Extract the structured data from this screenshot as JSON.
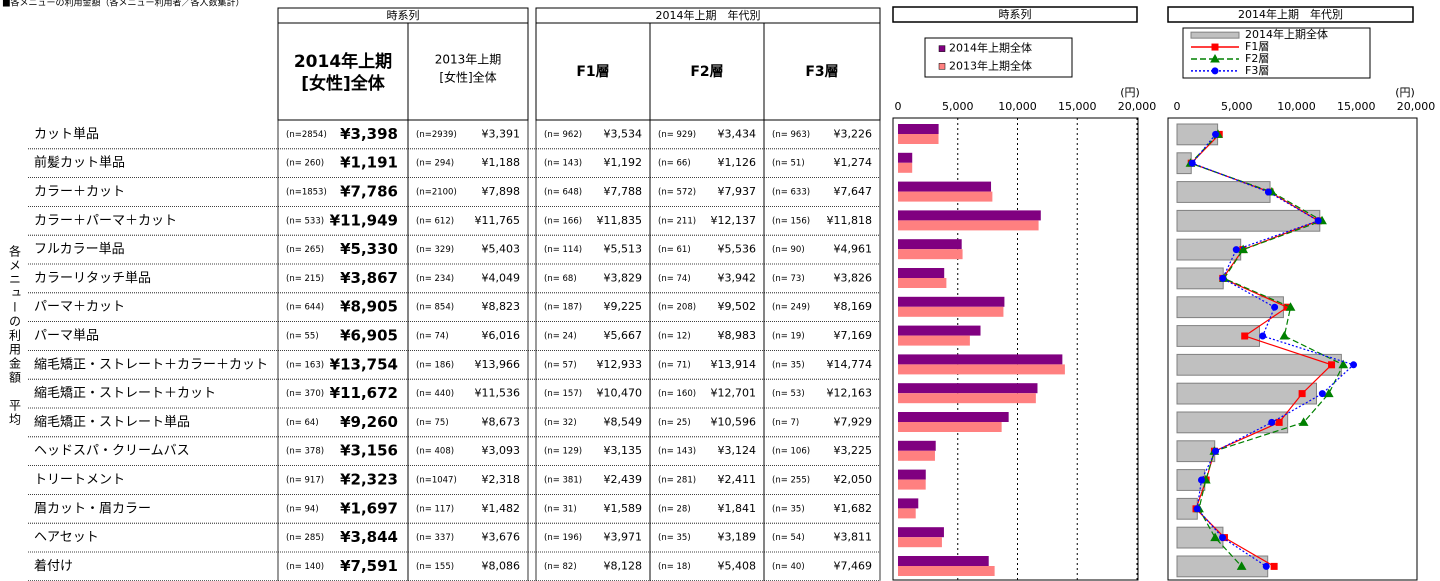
{
  "title": "■各メニューの利用金額（各メニュー利用者／各人数集計）",
  "side_label": "各メニューの利用金額　平均",
  "table": {
    "group_headers": [
      "時系列",
      "2014年上期　年代別"
    ],
    "columns": [
      {
        "line1": "2014年上期",
        "line2": "[女性]全体"
      },
      {
        "line1": "2013年上期",
        "line2": "[女性]全体"
      },
      {
        "line1": "F1層"
      },
      {
        "line1": "F2層"
      },
      {
        "line1": "F3層"
      }
    ],
    "rows": [
      {
        "menu": "カット単品",
        "cells": [
          {
            "n": "(n=2854)",
            "value": 3398,
            "label": "¥3,398"
          },
          {
            "n": "(n=2939)",
            "value": 3391,
            "label": "¥3,391"
          },
          {
            "n": "(n= 962)",
            "value": 3534,
            "label": "¥3,534"
          },
          {
            "n": "(n= 929)",
            "value": 3434,
            "label": "¥3,434"
          },
          {
            "n": "(n= 963)",
            "value": 3226,
            "label": "¥3,226"
          }
        ]
      },
      {
        "menu": "前髪カット単品",
        "cells": [
          {
            "n": "(n= 260)",
            "value": 1191,
            "label": "¥1,191"
          },
          {
            "n": "(n= 294)",
            "value": 1188,
            "label": "¥1,188"
          },
          {
            "n": "(n= 143)",
            "value": 1192,
            "label": "¥1,192"
          },
          {
            "n": "(n= 66)",
            "value": 1126,
            "label": "¥1,126"
          },
          {
            "n": "(n= 51)",
            "value": 1274,
            "label": "¥1,274"
          }
        ]
      },
      {
        "menu": "カラー＋カット",
        "cells": [
          {
            "n": "(n=1853)",
            "value": 7786,
            "label": "¥7,786"
          },
          {
            "n": "(n=2100)",
            "value": 7898,
            "label": "¥7,898"
          },
          {
            "n": "(n= 648)",
            "value": 7788,
            "label": "¥7,788"
          },
          {
            "n": "(n= 572)",
            "value": 7937,
            "label": "¥7,937"
          },
          {
            "n": "(n= 633)",
            "value": 7647,
            "label": "¥7,647"
          }
        ]
      },
      {
        "menu": "カラー＋パーマ＋カット",
        "cells": [
          {
            "n": "(n= 533)",
            "value": 11949,
            "label": "¥11,949"
          },
          {
            "n": "(n= 612)",
            "value": 11765,
            "label": "¥11,765"
          },
          {
            "n": "(n= 166)",
            "value": 11835,
            "label": "¥11,835"
          },
          {
            "n": "(n= 211)",
            "value": 12137,
            "label": "¥12,137"
          },
          {
            "n": "(n= 156)",
            "value": 11818,
            "label": "¥11,818"
          }
        ]
      },
      {
        "menu": "フルカラー単品",
        "cells": [
          {
            "n": "(n= 265)",
            "value": 5330,
            "label": "¥5,330"
          },
          {
            "n": "(n= 329)",
            "value": 5403,
            "label": "¥5,403"
          },
          {
            "n": "(n= 114)",
            "value": 5513,
            "label": "¥5,513"
          },
          {
            "n": "(n= 61)",
            "value": 5536,
            "label": "¥5,536"
          },
          {
            "n": "(n= 90)",
            "value": 4961,
            "label": "¥4,961"
          }
        ]
      },
      {
        "menu": "カラーリタッチ単品",
        "cells": [
          {
            "n": "(n= 215)",
            "value": 3867,
            "label": "¥3,867"
          },
          {
            "n": "(n= 234)",
            "value": 4049,
            "label": "¥4,049"
          },
          {
            "n": "(n= 68)",
            "value": 3829,
            "label": "¥3,829"
          },
          {
            "n": "(n= 74)",
            "value": 3942,
            "label": "¥3,942"
          },
          {
            "n": "(n= 73)",
            "value": 3826,
            "label": "¥3,826"
          }
        ]
      },
      {
        "menu": "パーマ＋カット",
        "cells": [
          {
            "n": "(n= 644)",
            "value": 8905,
            "label": "¥8,905"
          },
          {
            "n": "(n= 854)",
            "value": 8823,
            "label": "¥8,823"
          },
          {
            "n": "(n= 187)",
            "value": 9225,
            "label": "¥9,225"
          },
          {
            "n": "(n= 208)",
            "value": 9502,
            "label": "¥9,502"
          },
          {
            "n": "(n= 249)",
            "value": 8169,
            "label": "¥8,169"
          }
        ]
      },
      {
        "menu": "パーマ単品",
        "cells": [
          {
            "n": "(n= 55)",
            "value": 6905,
            "label": "¥6,905"
          },
          {
            "n": "(n= 74)",
            "value": 6016,
            "label": "¥6,016"
          },
          {
            "n": "(n= 24)",
            "value": 5667,
            "label": "¥5,667"
          },
          {
            "n": "(n= 12)",
            "value": 8983,
            "label": "¥8,983"
          },
          {
            "n": "(n= 19)",
            "value": 7169,
            "label": "¥7,169"
          }
        ]
      },
      {
        "menu": "縮毛矯正・ストレート＋カラー＋カット",
        "cells": [
          {
            "n": "(n= 163)",
            "value": 13754,
            "label": "¥13,754"
          },
          {
            "n": "(n= 186)",
            "value": 13966,
            "label": "¥13,966"
          },
          {
            "n": "(n= 57)",
            "value": 12933,
            "label": "¥12,933"
          },
          {
            "n": "(n= 71)",
            "value": 13914,
            "label": "¥13,914"
          },
          {
            "n": "(n= 35)",
            "value": 14774,
            "label": "¥14,774"
          }
        ]
      },
      {
        "menu": "縮毛矯正・ストレート＋カット",
        "cells": [
          {
            "n": "(n= 370)",
            "value": 11672,
            "label": "¥11,672"
          },
          {
            "n": "(n= 440)",
            "value": 11536,
            "label": "¥11,536"
          },
          {
            "n": "(n= 157)",
            "value": 10470,
            "label": "¥10,470"
          },
          {
            "n": "(n= 160)",
            "value": 12701,
            "label": "¥12,701"
          },
          {
            "n": "(n= 53)",
            "value": 12163,
            "label": "¥12,163"
          }
        ]
      },
      {
        "menu": "縮毛矯正・ストレート単品",
        "cells": [
          {
            "n": "(n= 64)",
            "value": 9260,
            "label": "¥9,260"
          },
          {
            "n": "(n= 75)",
            "value": 8673,
            "label": "¥8,673"
          },
          {
            "n": "(n= 32)",
            "value": 8549,
            "label": "¥8,549"
          },
          {
            "n": "(n= 25)",
            "value": 10596,
            "label": "¥10,596"
          },
          {
            "n": "(n= 7)",
            "value": 7929,
            "label": "¥7,929"
          }
        ]
      },
      {
        "menu": "ヘッドスパ・クリームバス",
        "cells": [
          {
            "n": "(n= 378)",
            "value": 3156,
            "label": "¥3,156"
          },
          {
            "n": "(n= 408)",
            "value": 3093,
            "label": "¥3,093"
          },
          {
            "n": "(n= 129)",
            "value": 3135,
            "label": "¥3,135"
          },
          {
            "n": "(n= 143)",
            "value": 3124,
            "label": "¥3,124"
          },
          {
            "n": "(n= 106)",
            "value": 3225,
            "label": "¥3,225"
          }
        ]
      },
      {
        "menu": "トリートメント",
        "cells": [
          {
            "n": "(n= 917)",
            "value": 2323,
            "label": "¥2,323"
          },
          {
            "n": "(n=1047)",
            "value": 2318,
            "label": "¥2,318"
          },
          {
            "n": "(n= 381)",
            "value": 2439,
            "label": "¥2,439"
          },
          {
            "n": "(n= 281)",
            "value": 2411,
            "label": "¥2,411"
          },
          {
            "n": "(n= 255)",
            "value": 2050,
            "label": "¥2,050"
          }
        ]
      },
      {
        "menu": "眉カット・眉カラー",
        "cells": [
          {
            "n": "(n= 94)",
            "value": 1697,
            "label": "¥1,697"
          },
          {
            "n": "(n= 117)",
            "value": 1482,
            "label": "¥1,482"
          },
          {
            "n": "(n= 31)",
            "value": 1589,
            "label": "¥1,589"
          },
          {
            "n": "(n= 28)",
            "value": 1841,
            "label": "¥1,841"
          },
          {
            "n": "(n= 35)",
            "value": 1682,
            "label": "¥1,682"
          }
        ]
      },
      {
        "menu": "ヘアセット",
        "cells": [
          {
            "n": "(n= 285)",
            "value": 3844,
            "label": "¥3,844"
          },
          {
            "n": "(n= 337)",
            "value": 3676,
            "label": "¥3,676"
          },
          {
            "n": "(n= 196)",
            "value": 3971,
            "label": "¥3,971"
          },
          {
            "n": "(n= 35)",
            "value": 3189,
            "label": "¥3,189"
          },
          {
            "n": "(n= 54)",
            "value": 3811,
            "label": "¥3,811"
          }
        ]
      },
      {
        "menu": "着付け",
        "cells": [
          {
            "n": "(n= 140)",
            "value": 7591,
            "label": "¥7,591"
          },
          {
            "n": "(n= 155)",
            "value": 8086,
            "label": "¥8,086"
          },
          {
            "n": "(n= 82)",
            "value": 8128,
            "label": "¥8,128"
          },
          {
            "n": "(n= 18)",
            "value": 5408,
            "label": "¥5,408"
          },
          {
            "n": "(n= 40)",
            "value": 7469,
            "label": "¥7,469"
          }
        ]
      }
    ]
  },
  "charts": [
    {
      "type": "bar",
      "title": "時系列",
      "unit": "(円)",
      "xlim": [
        0,
        20000
      ],
      "xticks": [
        0,
        {
          "value": 5000,
          "label": "5,000"
        },
        {
          "value": 10000,
          "label": "10,000"
        },
        {
          "value": 15000,
          "label": "15,000"
        },
        {
          "value": 20000,
          "label": "20,000"
        }
      ],
      "grid": true,
      "series": [
        {
          "name": "2014年上期全体",
          "color": "#800080",
          "type": "bar"
        },
        {
          "name": "2013年上期全体",
          "color": "#ff8080",
          "type": "bar"
        }
      ]
    },
    {
      "type": "bar+line",
      "title": "2014年上期　年代別",
      "unit": "(円)",
      "xlim": [
        0,
        20000
      ],
      "xticks": [
        0,
        {
          "value": 5000,
          "label": "5,000"
        },
        {
          "value": 10000,
          "label": "10,000"
        },
        {
          "value": 15000,
          "label": "15,000"
        },
        {
          "value": 20000,
          "label": "20,000"
        }
      ],
      "grid": false,
      "series": [
        {
          "name": "2014年上期全体",
          "color": "#c0c0c0",
          "type": "bar"
        },
        {
          "name": "F1層",
          "color": "#ff0000",
          "type": "line",
          "line_style": "solid",
          "marker": "square"
        },
        {
          "name": "F2層",
          "color": "#008000",
          "type": "line",
          "line_style": "dashed",
          "marker": "triangle"
        },
        {
          "name": "F3層",
          "color": "#0000ff",
          "type": "line",
          "line_style": "dotted",
          "marker": "circle"
        }
      ]
    }
  ]
}
